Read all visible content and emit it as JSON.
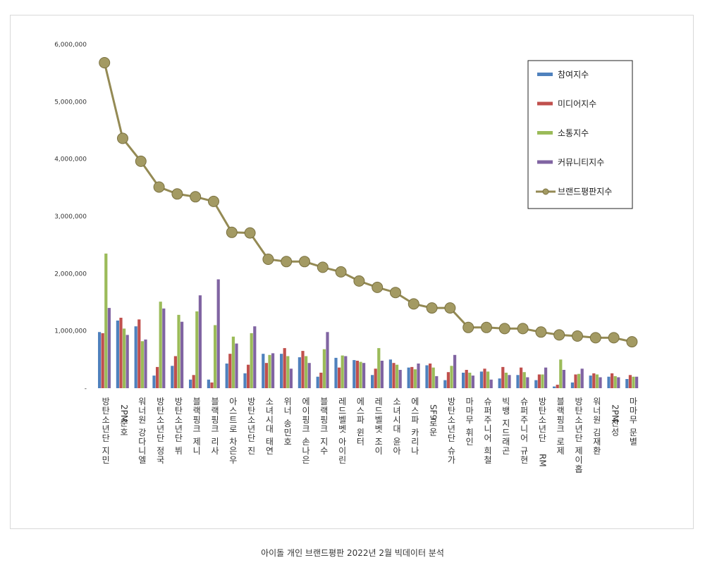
{
  "caption": "아이돌 개인 브랜드평판  2022년 2월 빅데이터 분석",
  "chart_data": {
    "type": "bar",
    "ylim": [
      0,
      6000000
    ],
    "y_ticks": [
      "-",
      "1,000,000",
      "2,000,000",
      "3,000,000",
      "4,000,000",
      "5,000,000",
      "6,000,000"
    ],
    "grid": false,
    "legend_position": "top-right",
    "colors": {
      "참여지수": "#4f81bd",
      "미디어지수": "#c0504d",
      "소통지수": "#9bbb59",
      "커뮤니티지수": "#8064a2",
      "브랜드평판지수": "#948a54"
    },
    "categories": [
      "방탄소년단 지민",
      "2PM 준호",
      "워너원 강다니엘",
      "방탄소년단 정국",
      "방탄소년단 뷔",
      "블랙핑크 제니",
      "블랙핑크 리사",
      "아스트로 차은우",
      "방탄소년단 진",
      "소녀시대 태연",
      "위너 송민호",
      "에이핑크 손나은",
      "블랙핑크 지수",
      "레드벨벳 아이린",
      "에스파 윈터",
      "레드벨벳 조이",
      "소녀시대 윤아",
      "에스파 카리나",
      "SF9 로운",
      "방탄소년단 슈가",
      "마마무 휘인",
      "슈퍼주니어 희철",
      "빅뱅 지드래곤",
      "슈퍼주니어 규현",
      "방탄소년단 RM",
      "블랙핑크 로제",
      "방탄소년단 제이홉",
      "워너원 김재환",
      "2PM 찬성",
      "마마무 문별"
    ],
    "series": [
      {
        "name": "참여지수",
        "type": "bar",
        "values": [
          980000,
          1180000,
          1080000,
          220000,
          390000,
          150000,
          150000,
          430000,
          260000,
          600000,
          600000,
          540000,
          200000,
          530000,
          490000,
          230000,
          500000,
          360000,
          400000,
          140000,
          270000,
          290000,
          170000,
          230000,
          140000,
          30000,
          100000,
          220000,
          200000,
          160000
        ]
      },
      {
        "name": "미디어지수",
        "type": "bar",
        "values": [
          960000,
          1230000,
          1200000,
          370000,
          560000,
          230000,
          100000,
          600000,
          410000,
          440000,
          700000,
          650000,
          270000,
          360000,
          480000,
          340000,
          440000,
          370000,
          430000,
          280000,
          320000,
          340000,
          370000,
          360000,
          240000,
          60000,
          240000,
          260000,
          260000,
          230000
        ]
      },
      {
        "name": "소통지수",
        "type": "bar",
        "values": [
          2350000,
          1040000,
          820000,
          1510000,
          1280000,
          1340000,
          1100000,
          900000,
          960000,
          580000,
          560000,
          560000,
          680000,
          570000,
          460000,
          700000,
          410000,
          330000,
          360000,
          390000,
          270000,
          290000,
          270000,
          280000,
          240000,
          500000,
          250000,
          240000,
          210000,
          200000
        ]
      },
      {
        "name": "커뮤니티지수",
        "type": "bar",
        "values": [
          1400000,
          930000,
          850000,
          1390000,
          1160000,
          1620000,
          1900000,
          780000,
          1080000,
          610000,
          340000,
          440000,
          980000,
          560000,
          440000,
          480000,
          320000,
          430000,
          210000,
          580000,
          220000,
          150000,
          230000,
          190000,
          360000,
          320000,
          340000,
          190000,
          190000,
          200000
        ]
      },
      {
        "name": "브랜드평판지수",
        "type": "line",
        "values": [
          5680000,
          4360000,
          3960000,
          3510000,
          3390000,
          3340000,
          3260000,
          2720000,
          2710000,
          2250000,
          2210000,
          2210000,
          2110000,
          2030000,
          1870000,
          1760000,
          1670000,
          1470000,
          1400000,
          1400000,
          1060000,
          1060000,
          1040000,
          1040000,
          980000,
          930000,
          910000,
          880000,
          880000,
          810000
        ]
      }
    ]
  }
}
